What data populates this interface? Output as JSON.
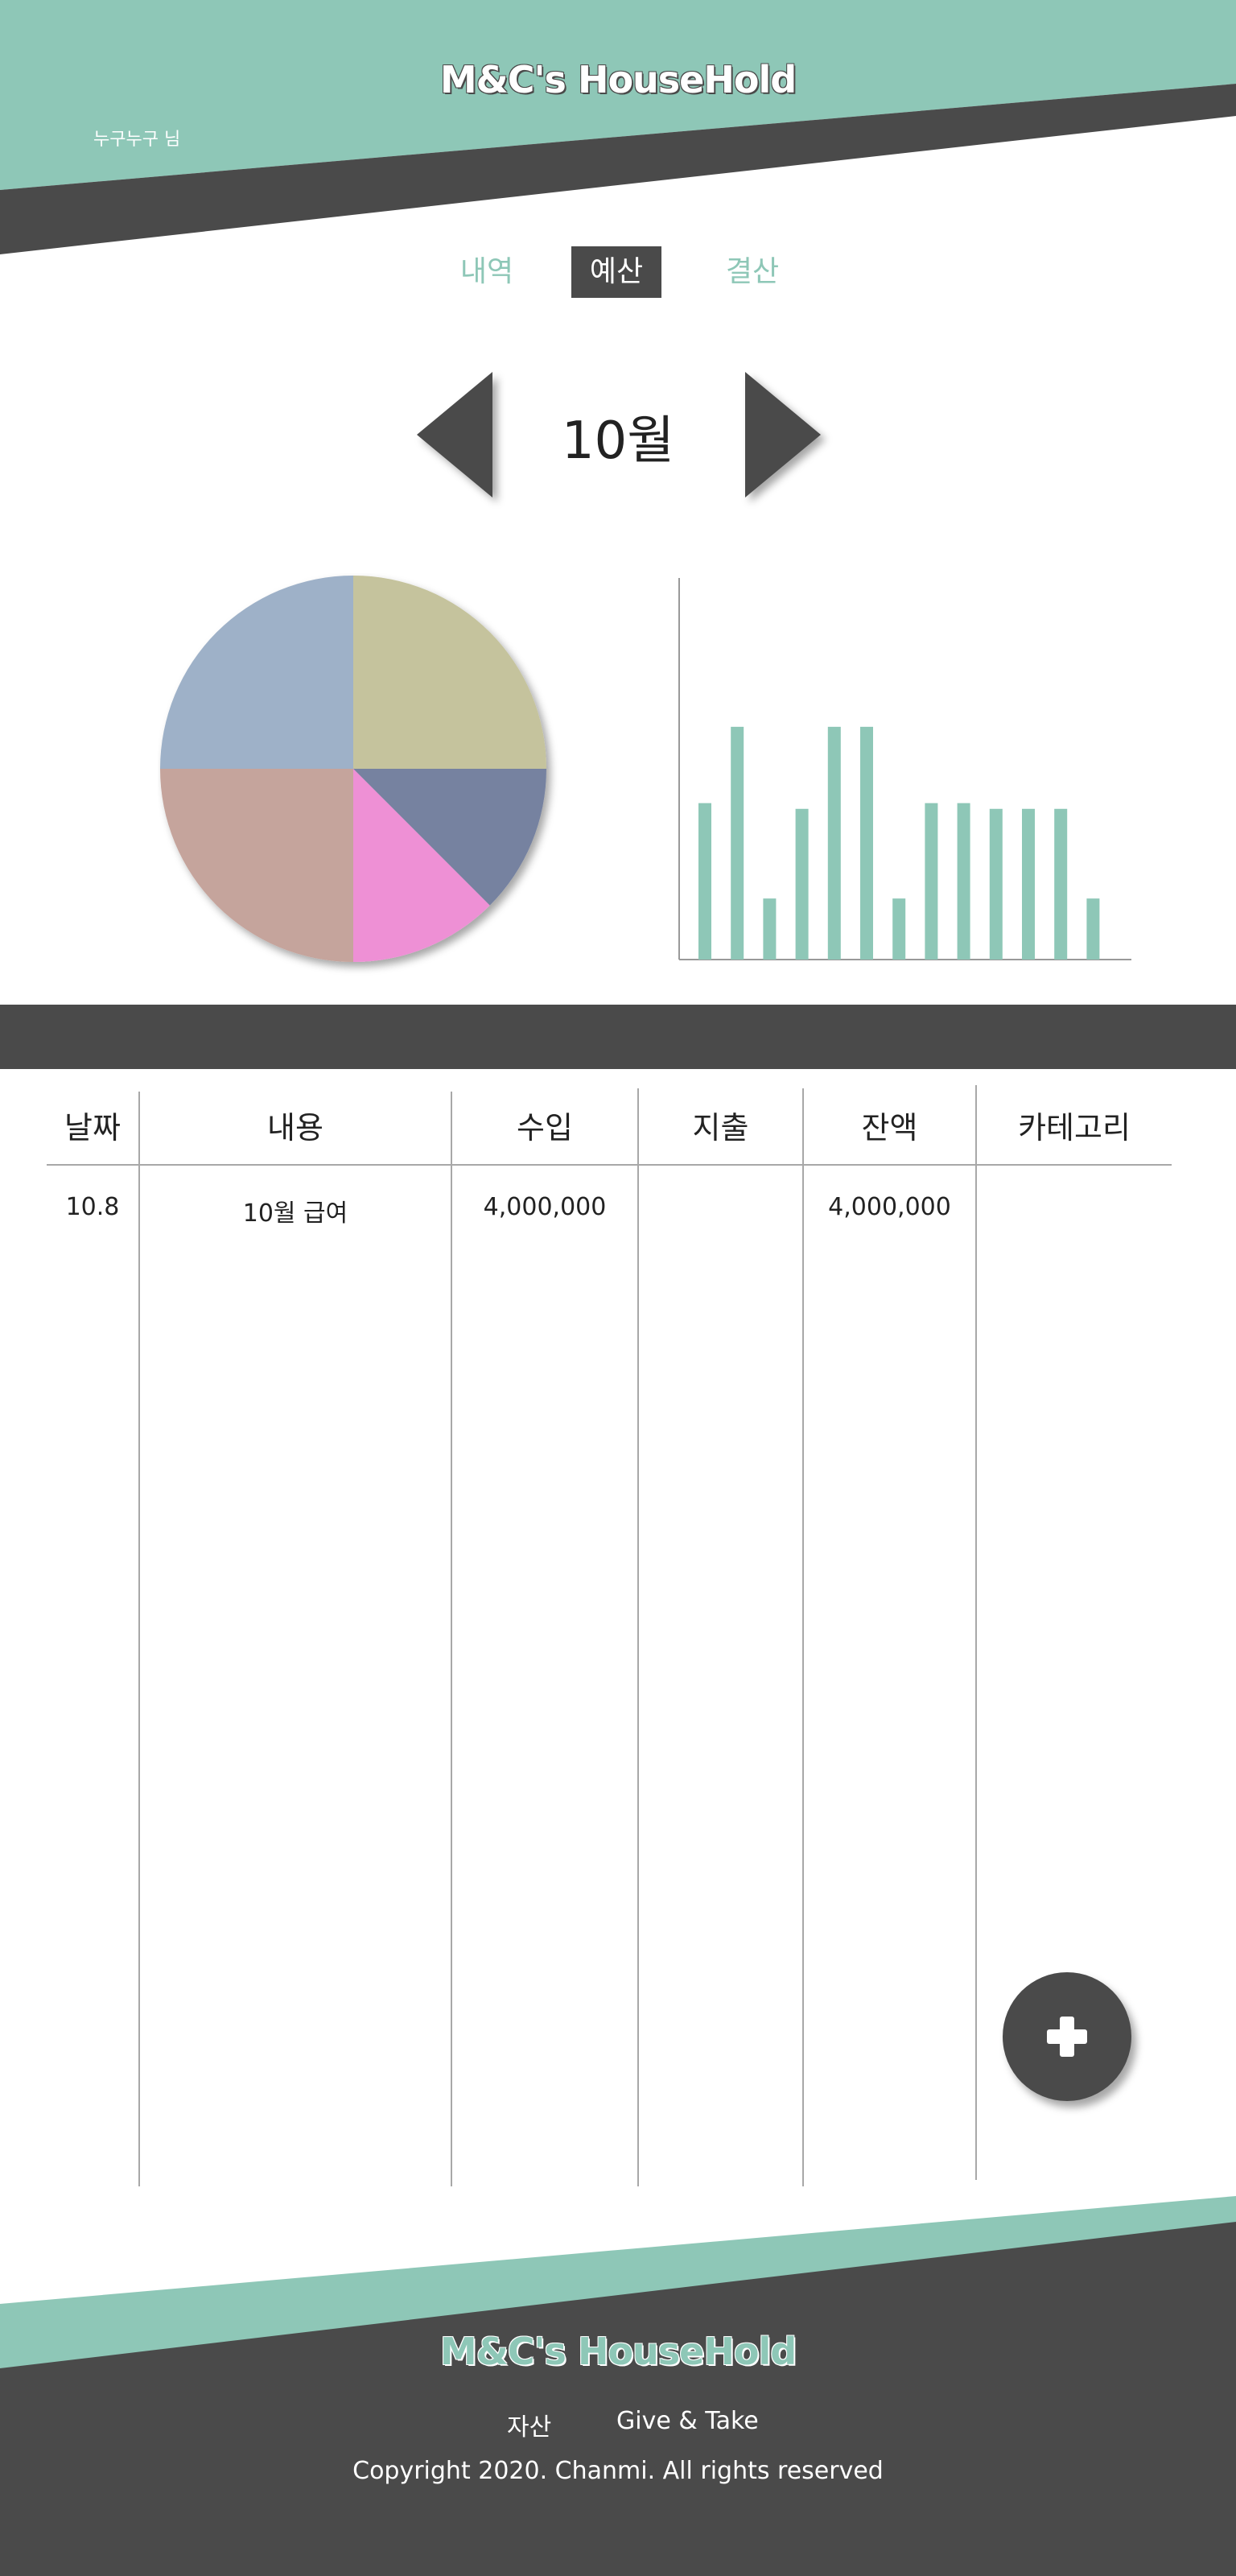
{
  "app": {
    "title": "M&C's HouseHold",
    "user": "누구누구 님"
  },
  "colors": {
    "accent": "#8ec7b7",
    "dark": "#4a4a4a",
    "pie": [
      "#c5c39d",
      "#7682a0",
      "#ee90d5",
      "#c5a49c",
      "#9eb1c8"
    ],
    "bar": "#8ec7b7"
  },
  "tabs": [
    {
      "label": "내역",
      "active": false
    },
    {
      "label": "예산",
      "active": true
    },
    {
      "label": "결산",
      "active": false
    }
  ],
  "month": {
    "label": "10월",
    "prev_icon": "triangle-left-icon",
    "next_icon": "triangle-right-icon"
  },
  "chart_data": [
    {
      "type": "pie",
      "values": [
        25,
        12.5,
        12.5,
        25,
        25
      ],
      "start": "top",
      "direction": "clockwise"
    },
    {
      "type": "bar",
      "values": [
        4.1,
        6.1,
        1.6,
        3.95,
        6.1,
        6.1,
        1.6,
        4.1,
        4.1,
        3.95,
        3.95,
        3.95,
        1.6
      ],
      "ylim": [
        0,
        10
      ],
      "grid": false
    }
  ],
  "table": {
    "columns": [
      "날짜",
      "내용",
      "수입",
      "지출",
      "잔액",
      "카테고리"
    ],
    "rows": [
      {
        "date": "10.8",
        "content": "10월 급여",
        "income": "4,000,000",
        "expense": "",
        "balance": "4,000,000",
        "category": ""
      }
    ]
  },
  "fab": {
    "icon": "plus-icon"
  },
  "footer": {
    "title": "M&C's HouseHold",
    "links": [
      "자산",
      "Give & Take"
    ],
    "copyright": "Copyright 2020. Chanmi. All rights reserved"
  }
}
